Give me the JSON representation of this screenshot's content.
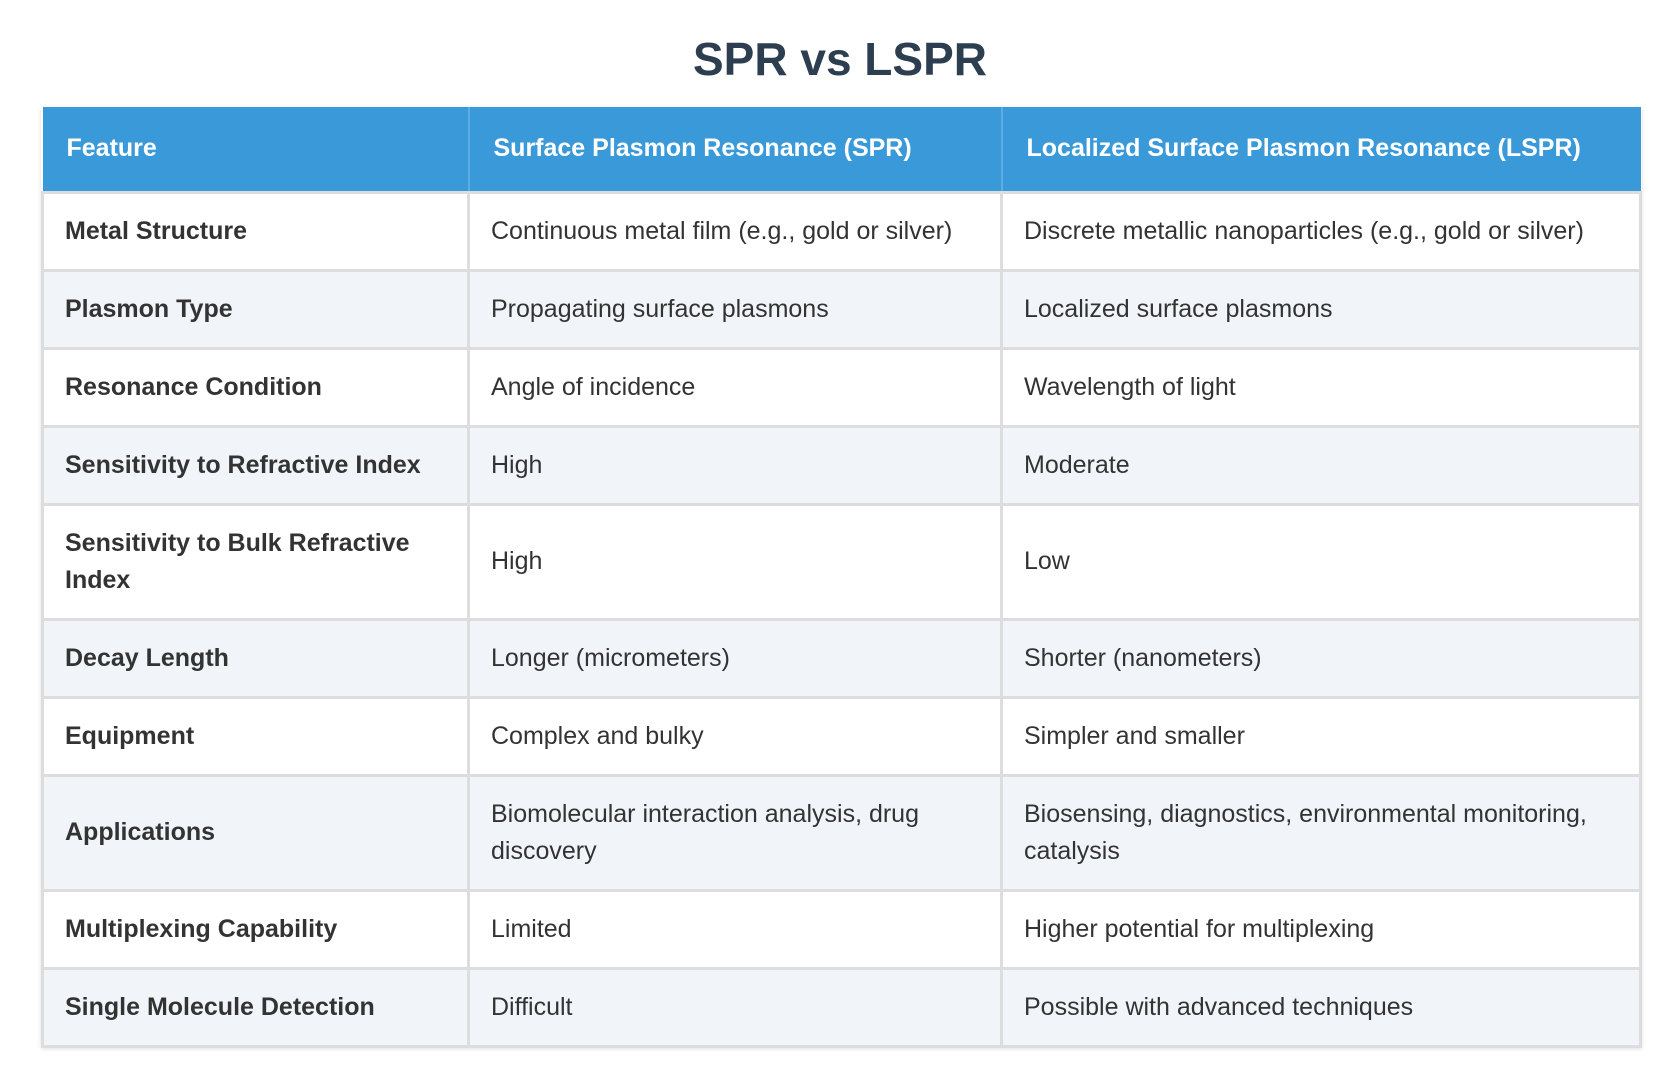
{
  "title": "SPR vs LSPR",
  "header": {
    "feature": "Feature",
    "spr": "Surface Plasmon Resonance (SPR)",
    "lspr": "Localized Surface Plasmon Resonance (LSPR)"
  },
  "rows": [
    {
      "feature": "Metal Structure",
      "spr": "Continuous metal film (e.g., gold or silver)",
      "lspr": "Discrete metallic nanoparticles (e.g., gold or silver)"
    },
    {
      "feature": "Plasmon Type",
      "spr": "Propagating surface plasmons",
      "lspr": "Localized surface plasmons"
    },
    {
      "feature": "Resonance Condition",
      "spr": "Angle of incidence",
      "lspr": "Wavelength of light"
    },
    {
      "feature": "Sensitivity to Refractive Index",
      "spr": "High",
      "lspr": "Moderate"
    },
    {
      "feature": "Sensitivity to Bulk Refractive Index",
      "spr": "High",
      "lspr": "Low"
    },
    {
      "feature": "Decay Length",
      "spr": "Longer (micrometers)",
      "lspr": "Shorter (nanometers)"
    },
    {
      "feature": "Equipment",
      "spr": "Complex and bulky",
      "lspr": "Simpler and smaller"
    },
    {
      "feature": "Applications",
      "spr": "Biomolecular interaction analysis, drug discovery",
      "lspr": "Biosensing, diagnostics, environmental monitoring, catalysis"
    },
    {
      "feature": "Multiplexing Capability",
      "spr": "Limited",
      "lspr": "Higher potential for multiplexing"
    },
    {
      "feature": "Single Molecule Detection",
      "spr": "Difficult",
      "lspr": "Possible with advanced techniques"
    }
  ],
  "colors": {
    "header_bg": "#3a9ad9",
    "title": "#2c3e50",
    "row_alt": "#f1f4f9"
  }
}
